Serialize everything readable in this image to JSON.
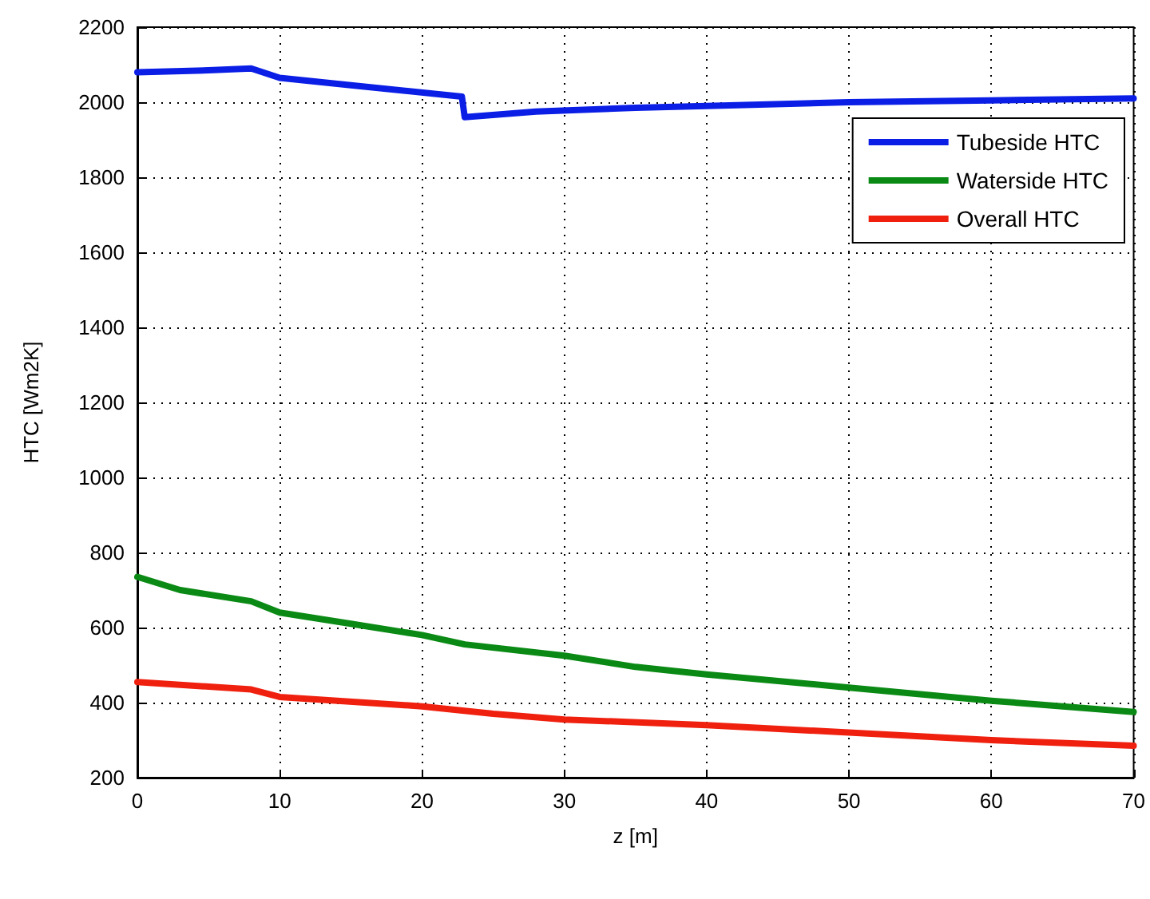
{
  "chart_data": {
    "type": "line",
    "xlabel": "z [m]",
    "ylabel": "HTC [Wm2K]",
    "xlim": [
      0,
      70
    ],
    "xticks": [
      0,
      10,
      20,
      30,
      40,
      50,
      60,
      70
    ],
    "ylim": [
      200,
      2200
    ],
    "yticks": [
      200,
      400,
      600,
      800,
      1000,
      1200,
      1400,
      1600,
      1800,
      2000,
      2200
    ],
    "grid": true,
    "legend": "top right",
    "marker": "none",
    "line_style": "solid",
    "series": [
      {
        "name": "Tubeside HTC",
        "color": "#0a1ee6",
        "x": [
          0,
          5,
          8,
          10,
          15,
          22.8,
          23,
          28,
          35,
          40,
          50,
          60,
          70
        ],
        "values": [
          2080,
          2085,
          2090,
          2065,
          2045,
          2015,
          1960,
          1975,
          1985,
          1990,
          2000,
          2005,
          2010
        ]
      },
      {
        "name": "Waterside HTC",
        "color": "#0a8a14",
        "x": [
          0,
          3,
          8,
          10,
          15,
          20,
          23,
          30,
          35,
          40,
          50,
          60,
          70
        ],
        "values": [
          735,
          700,
          670,
          640,
          610,
          580,
          555,
          525,
          495,
          475,
          440,
          405,
          375
        ]
      },
      {
        "name": "Overall HTC",
        "color": "#f0200f",
        "x": [
          0,
          8,
          10,
          20,
          25,
          30,
          40,
          50,
          60,
          70
        ],
        "values": [
          455,
          435,
          415,
          390,
          370,
          355,
          340,
          320,
          300,
          285
        ]
      }
    ]
  }
}
